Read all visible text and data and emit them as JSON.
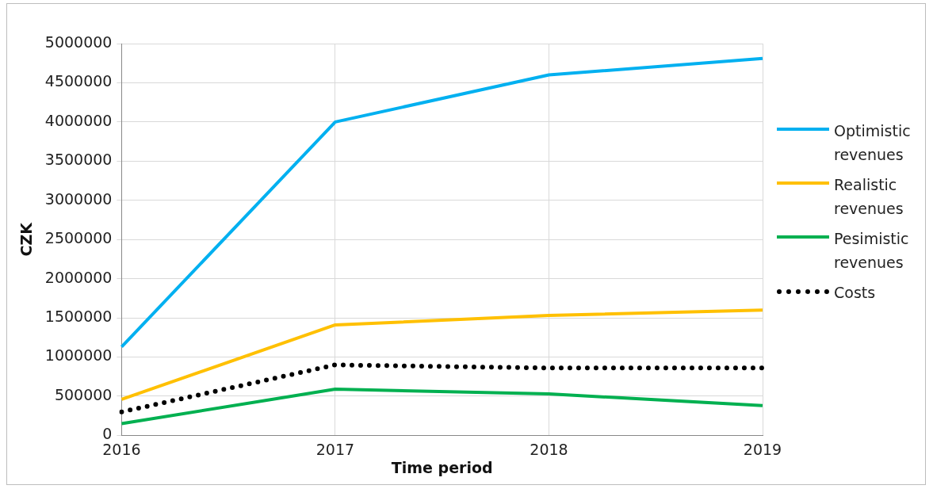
{
  "chart_data": {
    "type": "line",
    "xlabel": "Time period",
    "ylabel": "CZK",
    "categories": [
      "2016",
      "2017",
      "2018",
      "2019"
    ],
    "ylim": [
      0,
      5000000
    ],
    "yticks": [
      0,
      500000,
      1000000,
      1500000,
      2000000,
      2500000,
      3000000,
      3500000,
      4000000,
      4500000,
      5000000
    ],
    "grid": true,
    "legend": "right",
    "marker": "none",
    "series": [
      {
        "name": "Optimistic revenues",
        "color": "#00b0f0",
        "values": [
          1130000,
          4000000,
          4600000,
          4810000
        ]
      },
      {
        "name": "Realistic revenues",
        "color": "#ffc000",
        "values": [
          460000,
          1410000,
          1530000,
          1600000
        ]
      },
      {
        "name": "Pesimistic revenues",
        "color": "#00b050",
        "values": [
          150000,
          590000,
          530000,
          380000
        ]
      },
      {
        "name": "Costs",
        "color": "#000000",
        "line_style": "dotted",
        "values": [
          300000,
          900000,
          860000,
          860000
        ]
      }
    ]
  }
}
